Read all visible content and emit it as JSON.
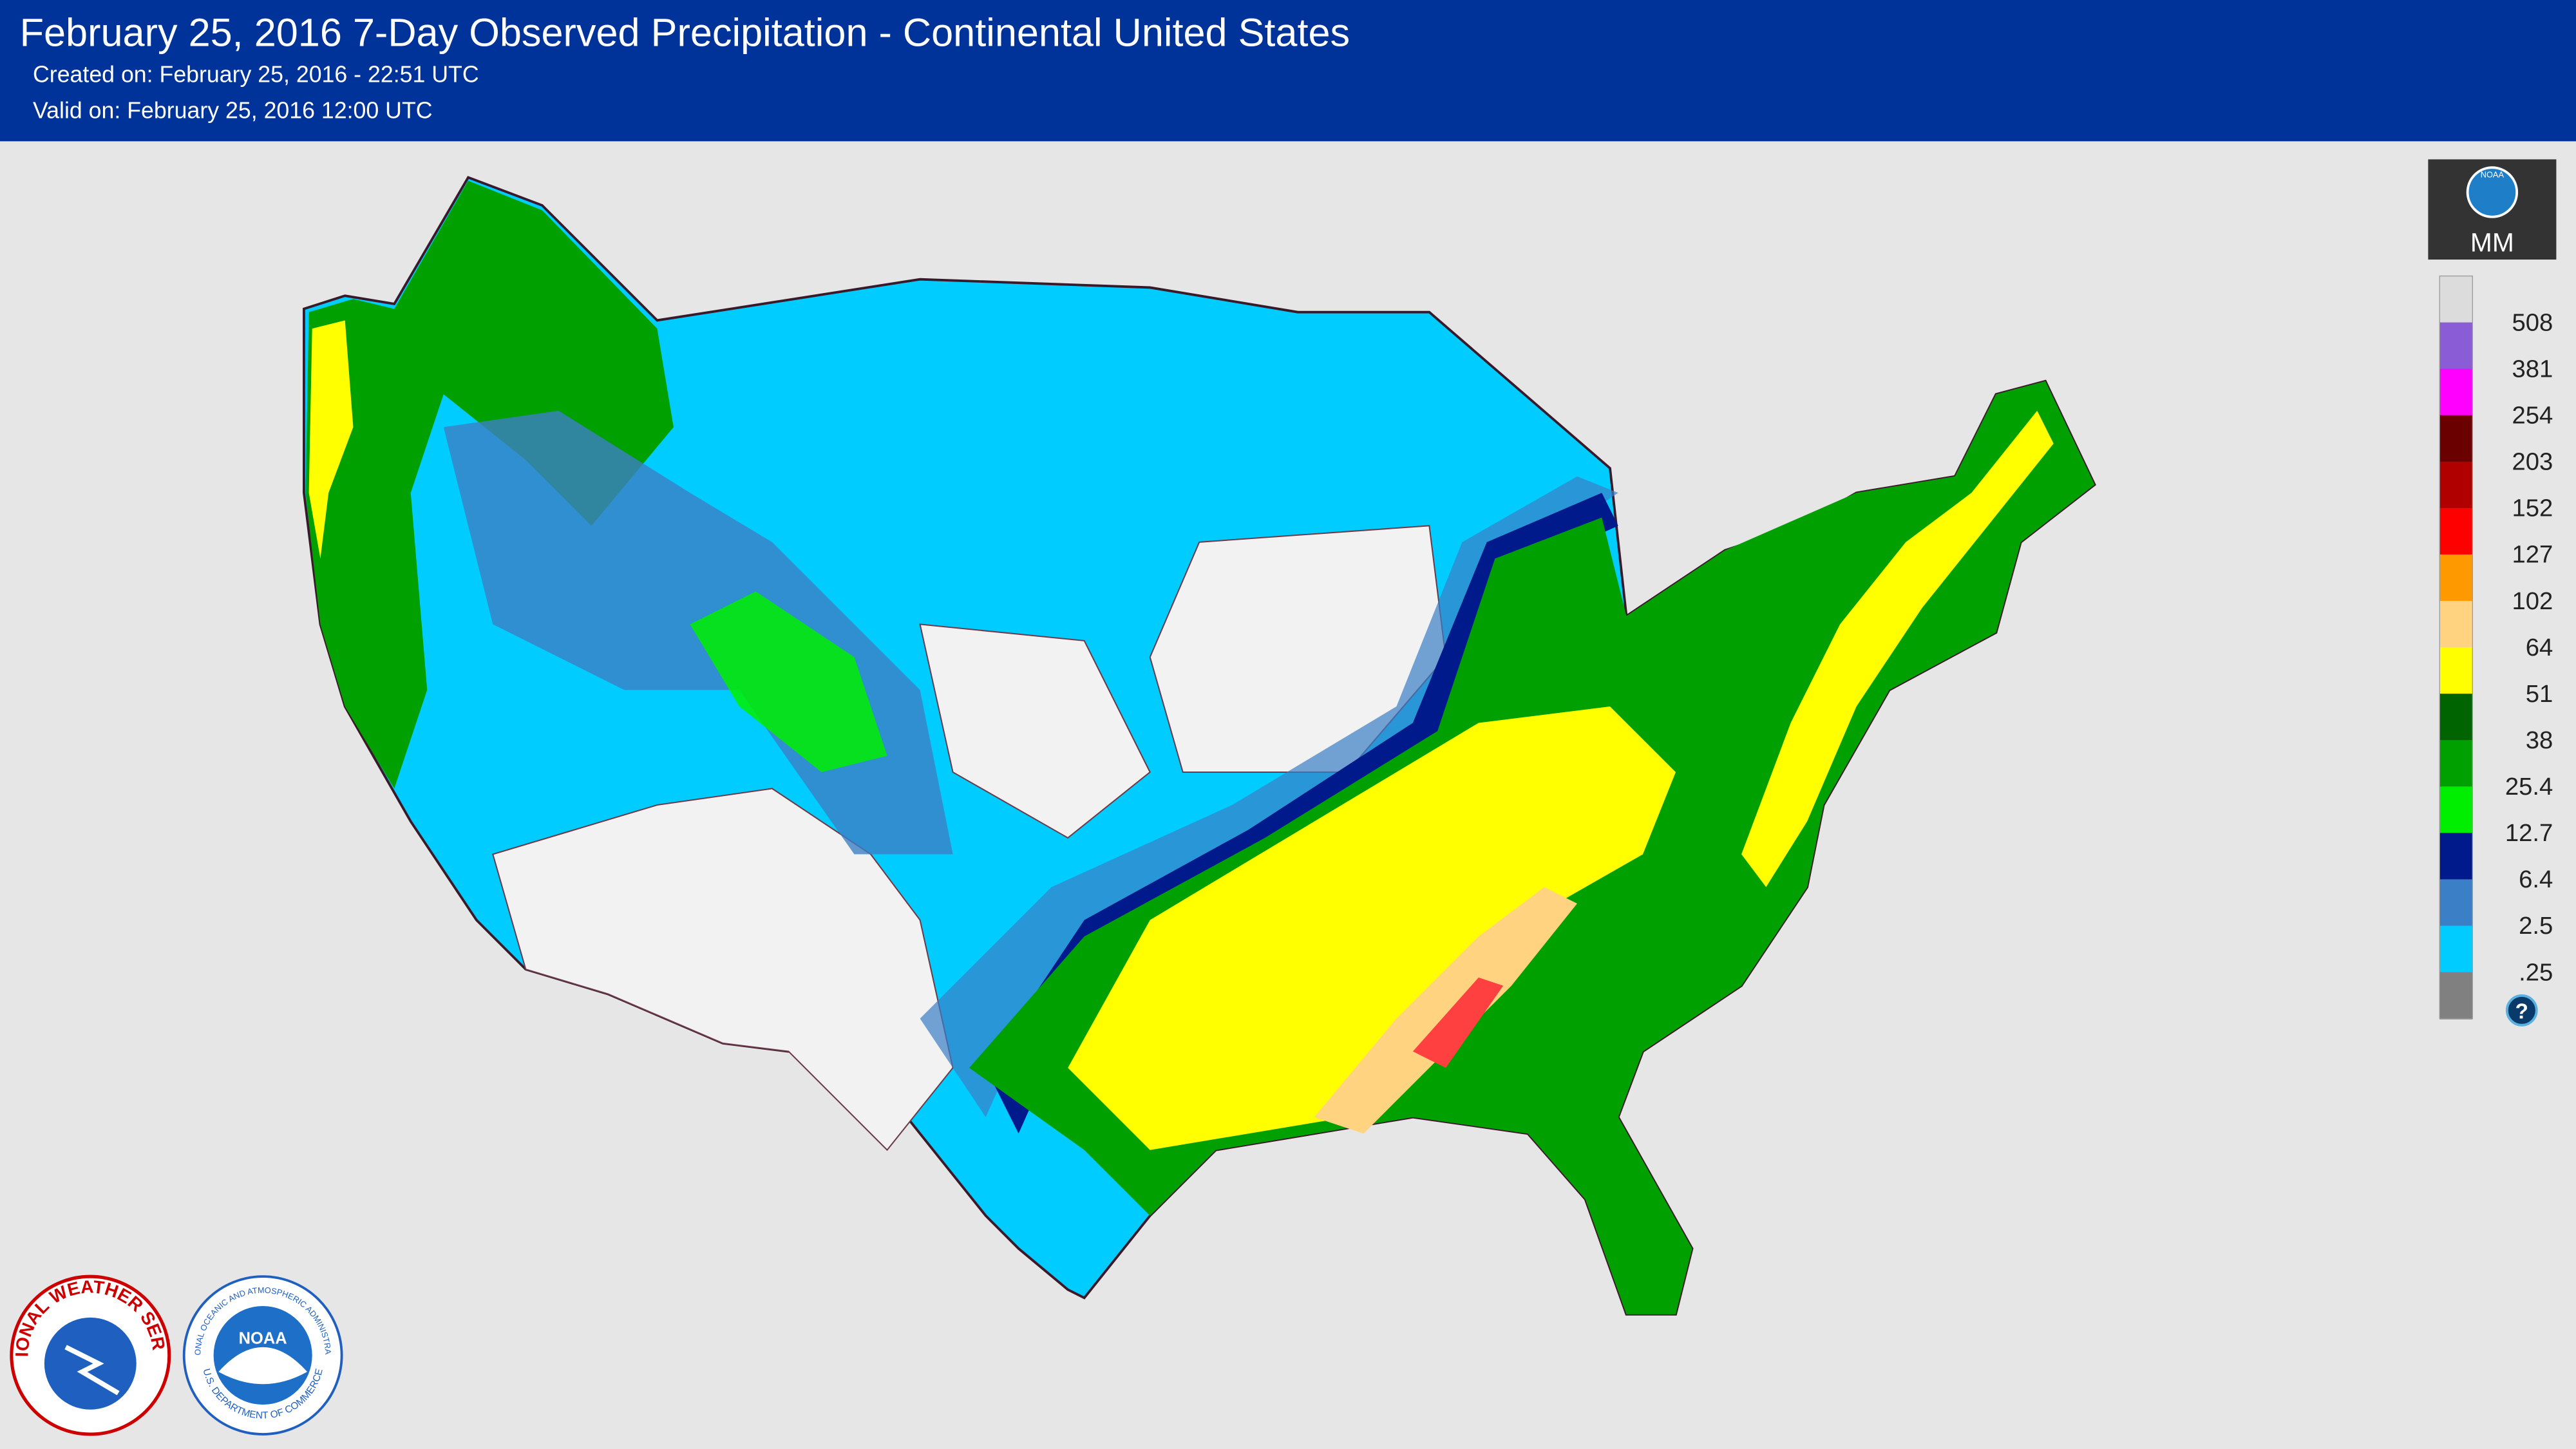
{
  "header": {
    "title": "February 25, 2016 7-Day Observed Precipitation - Continental United States",
    "created": "Created on: February 25, 2016 - 22:51 UTC",
    "valid": "Valid on: February 25, 2016 12:00 UTC"
  },
  "legend": {
    "logo_text": "NOAA",
    "unit": "MM",
    "labels": [
      "508",
      "381",
      "254",
      "203",
      "152",
      "127",
      "102",
      "64",
      "51",
      "38",
      "25.4",
      "12.7",
      "6.4",
      "2.5",
      ".25"
    ],
    "colors": [
      "#dcdcdc",
      "#8a5cd6",
      "#ff00ff",
      "#6b0000",
      "#b00000",
      "#ff0000",
      "#ff9900",
      "#ffd37f",
      "#ffff00",
      "#006400",
      "#00a000",
      "#00ee00",
      "#001a8c",
      "#3b7fc6",
      "#00ccff",
      "#808080"
    ],
    "help": "?"
  },
  "logos": {
    "nws_name": "NATIONAL WEATHER SERVICE",
    "noaa_name": "NOAA",
    "noaa_agency": "NATIONAL OCEANIC AND ATMOSPHERIC ADMINISTRATION",
    "noaa_department": "U.S. DEPARTMENT OF COMMERCE"
  }
}
